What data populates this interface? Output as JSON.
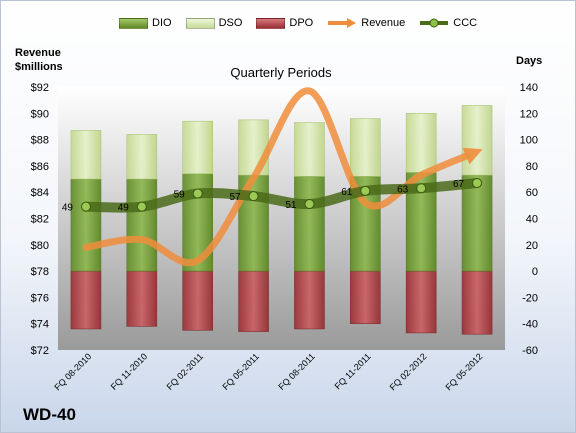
{
  "company": "WD-40",
  "chart_data": {
    "type": "bar",
    "title": "Quarterly Periods",
    "ylabel_left": [
      "Revenue",
      "$millions"
    ],
    "ylabel_right": "Days",
    "categories": [
      "FQ 08-2010",
      "FQ 11-2010",
      "FQ 02-2011",
      "FQ 05-2011",
      "FQ 08-2011",
      "FQ 11-2011",
      "FQ 02-2012",
      "FQ 05-2012"
    ],
    "ylim_left": [
      72,
      92
    ],
    "ylim_right": [
      -60,
      140
    ],
    "left_ticks": [
      "$72",
      "$74",
      "$76",
      "$78",
      "$80",
      "$82",
      "$84",
      "$86",
      "$88",
      "$90",
      "$92"
    ],
    "right_ticks": [
      "-60",
      "-40",
      "-20",
      "0",
      "20",
      "40",
      "60",
      "80",
      "100",
      "120",
      "140"
    ],
    "series": [
      {
        "name": "DIO",
        "type": "stacked-bar",
        "axis": "right",
        "color": "#77a33a",
        "values": [
          70,
          70,
          74,
          73,
          72,
          72,
          75,
          73
        ]
      },
      {
        "name": "DSO",
        "type": "stacked-bar",
        "axis": "right",
        "color": "#d7e8b0",
        "values": [
          37,
          34,
          40,
          42,
          41,
          44,
          45,
          53
        ]
      },
      {
        "name": "DPO",
        "type": "stacked-bar",
        "axis": "right",
        "color": "#b8454a",
        "values": [
          -44,
          -42,
          -45,
          -46,
          -44,
          -40,
          -47,
          -48
        ]
      },
      {
        "name": "Revenue",
        "type": "line",
        "axis": "left",
        "color": "#f08d3c",
        "values": [
          79.8,
          80.4,
          78.8,
          85.1,
          91.7,
          83.2,
          85.3,
          87.1
        ]
      },
      {
        "name": "CCC",
        "type": "line",
        "axis": "right",
        "color": "#4a6b1a",
        "values": [
          49,
          49,
          59,
          57,
          51,
          61,
          63,
          67
        ]
      }
    ],
    "data_labels": [
      "49",
      "49",
      "59",
      "57",
      "51",
      "61",
      "63",
      "67"
    ],
    "legend": "top",
    "grid": false
  }
}
